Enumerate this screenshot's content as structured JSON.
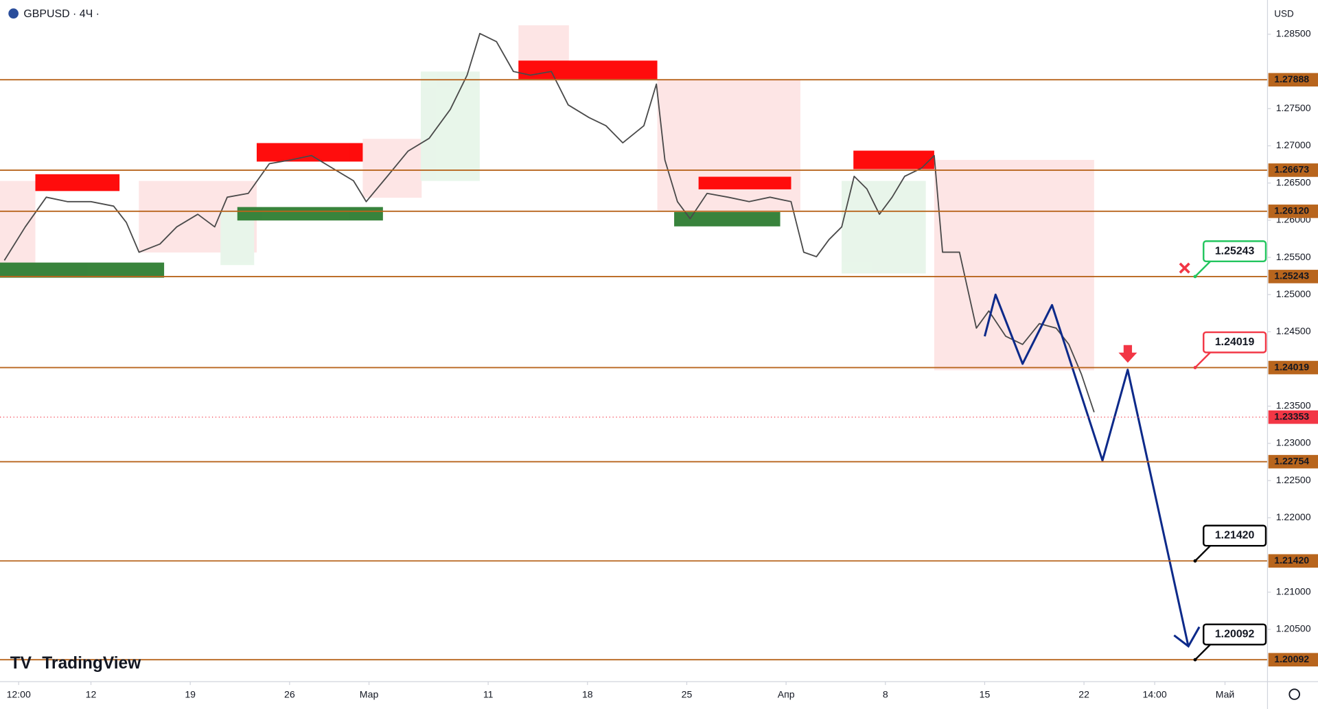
{
  "chart_data": {
    "type": "line",
    "title": "GBPUSD · 4Ч ·",
    "currency": "USD",
    "brand": "TradingView",
    "xlim": [
      -4.58,
      59.24
    ],
    "ylim": [
      1.1982,
      1.2896
    ],
    "xticks": [
      {
        "value": -3.64,
        "label": "12:00"
      },
      {
        "value": 0,
        "label": "12"
      },
      {
        "value": 5,
        "label": "19"
      },
      {
        "value": 10,
        "label": "26"
      },
      {
        "value": 14,
        "label": "Мар"
      },
      {
        "value": 20,
        "label": "11"
      },
      {
        "value": 25,
        "label": "18"
      },
      {
        "value": 30,
        "label": "25"
      },
      {
        "value": 35,
        "label": "Апр"
      },
      {
        "value": 40,
        "label": "8"
      },
      {
        "value": 45,
        "label": "15"
      },
      {
        "value": 50,
        "label": "22"
      },
      {
        "value": 53.56,
        "label": "14:00"
      },
      {
        "value": 57.1,
        "label": "Май"
      }
    ],
    "yticks": [
      {
        "value": 1.285,
        "label": "1.28500"
      },
      {
        "value": 1.275,
        "label": "1.27500"
      },
      {
        "value": 1.27,
        "label": "1.27000"
      },
      {
        "value": 1.265,
        "label": "1.26500"
      },
      {
        "value": 1.26,
        "label": "1.26000"
      },
      {
        "value": 1.255,
        "label": "1.25500"
      },
      {
        "value": 1.25,
        "label": "1.25000"
      },
      {
        "value": 1.245,
        "label": "1.24500"
      },
      {
        "value": 1.235,
        "label": "1.23500"
      },
      {
        "value": 1.23,
        "label": "1.23000"
      },
      {
        "value": 1.225,
        "label": "1.22500"
      },
      {
        "value": 1.22,
        "label": "1.22000"
      },
      {
        "value": 1.21,
        "label": "1.21000"
      },
      {
        "value": 1.205,
        "label": "1.20500"
      }
    ],
    "series": [
      {
        "color": "#4a4a4a",
        "x": [
          -4.36,
          -3.31,
          -2.25,
          -1.19,
          0,
          1.14,
          1.78,
          2.42,
          3.47,
          4.32,
          5.38,
          6.23,
          6.86,
          7.92,
          8.98,
          10.04,
          11.1,
          12.16,
          13.22,
          13.86,
          14.92,
          15.97,
          17.03,
          18.09,
          18.94,
          19.58,
          20.42,
          21.27,
          22.12,
          23.18,
          24.03,
          25.08,
          25.93,
          26.78,
          27.84,
          28.47,
          28.9,
          29.53,
          30.17,
          31.02,
          32.08,
          33.14,
          34.19,
          35.25,
          35.89,
          36.53,
          37.16,
          37.8,
          38.43,
          39.07,
          39.7,
          40.34,
          40.97,
          41.82,
          42.46,
          42.88,
          43.73,
          44.58,
          45.21,
          46.06,
          46.91,
          47.75,
          48.6,
          49.24,
          49.87,
          50.51
        ],
        "values": [
          1.2546,
          1.2591,
          1.2631,
          1.2625,
          1.2625,
          1.2619,
          1.2597,
          1.2557,
          1.2568,
          1.2591,
          1.2608,
          1.2591,
          1.2631,
          1.2636,
          1.2676,
          1.2681,
          1.2687,
          1.267,
          1.2653,
          1.2625,
          1.2659,
          1.2693,
          1.271,
          1.2749,
          1.2795,
          1.2851,
          1.284,
          1.28,
          1.2795,
          1.28,
          1.2755,
          1.2738,
          1.2727,
          1.2704,
          1.2727,
          1.2783,
          1.2681,
          1.2625,
          1.2602,
          1.2636,
          1.2631,
          1.2625,
          1.2631,
          1.2625,
          1.2557,
          1.2551,
          1.2574,
          1.2591,
          1.2659,
          1.2642,
          1.2608,
          1.2631,
          1.2659,
          1.267,
          1.2687,
          1.2557,
          1.2557,
          1.2455,
          1.2478,
          1.2444,
          1.2433,
          1.2461,
          1.2455,
          1.2433,
          1.2393,
          1.2342
        ]
      },
      {
        "color": "#0d2a8a",
        "x": [
          45,
          45.55,
          46.91,
          48.39,
          50.93,
          52.2,
          55.25
        ],
        "values": [
          1.2444,
          1.25,
          1.2407,
          1.2486,
          1.2277,
          1.2399,
          1.2028
        ]
      }
    ],
    "levels": [
      {
        "value": 1.27888,
        "label": "1.27888"
      },
      {
        "value": 1.26673,
        "label": "1.26673"
      },
      {
        "value": 1.2612,
        "label": "1.26120"
      },
      {
        "value": 1.25243,
        "label": "1.25243",
        "callout_color": "#22c55e"
      },
      {
        "value": 1.24019,
        "label": "1.24019",
        "callout_color": "#f23645"
      },
      {
        "value": 1.22754,
        "label": "1.22754"
      },
      {
        "value": 1.2142,
        "label": "1.21420",
        "callout_color": "#000000"
      },
      {
        "value": 1.20092,
        "label": "1.20092",
        "callout_color": "#000000"
      }
    ],
    "level_color": "#b8651d",
    "current_price": {
      "value": 1.23353,
      "label": "1.23353",
      "color": "#f23645"
    }
  }
}
